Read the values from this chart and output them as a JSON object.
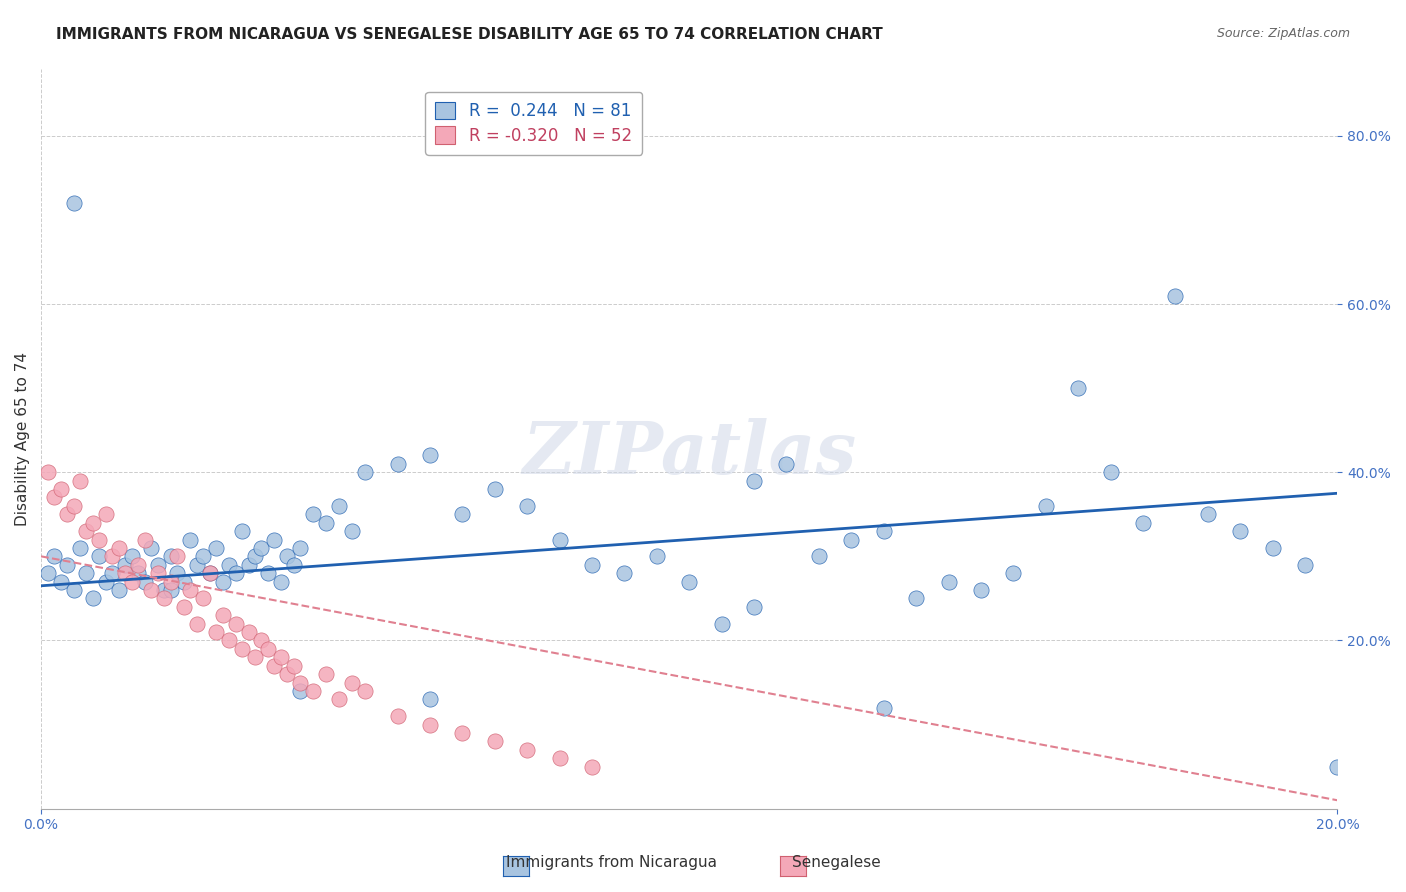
{
  "title": "IMMIGRANTS FROM NICARAGUA VS SENEGALESE DISABILITY AGE 65 TO 74 CORRELATION CHART",
  "source": "Source: ZipAtlas.com",
  "ylabel_label": "Disability Age 65 to 74",
  "xlim": [
    0.0,
    0.2
  ],
  "ylim": [
    0.0,
    0.88
  ],
  "watermark": "ZIPatlas",
  "legend_entry_1": "R =  0.244   N = 81",
  "legend_entry_2": "R = -0.320   N = 52",
  "nicaragua_scatter_x": [
    0.001,
    0.002,
    0.003,
    0.004,
    0.005,
    0.006,
    0.007,
    0.008,
    0.009,
    0.01,
    0.011,
    0.012,
    0.013,
    0.014,
    0.015,
    0.016,
    0.017,
    0.018,
    0.019,
    0.02,
    0.021,
    0.022,
    0.023,
    0.024,
    0.025,
    0.026,
    0.027,
    0.028,
    0.029,
    0.03,
    0.031,
    0.032,
    0.033,
    0.034,
    0.035,
    0.036,
    0.037,
    0.038,
    0.039,
    0.04,
    0.042,
    0.044,
    0.046,
    0.048,
    0.05,
    0.055,
    0.06,
    0.065,
    0.07,
    0.075,
    0.08,
    0.085,
    0.09,
    0.095,
    0.1,
    0.105,
    0.11,
    0.115,
    0.12,
    0.125,
    0.13,
    0.135,
    0.14,
    0.145,
    0.15,
    0.155,
    0.16,
    0.165,
    0.17,
    0.175,
    0.18,
    0.185,
    0.19,
    0.195,
    0.2,
    0.11,
    0.13,
    0.06,
    0.04,
    0.02,
    0.005
  ],
  "nicaragua_scatter_y": [
    0.28,
    0.3,
    0.27,
    0.29,
    0.26,
    0.31,
    0.28,
    0.25,
    0.3,
    0.27,
    0.28,
    0.26,
    0.29,
    0.3,
    0.28,
    0.27,
    0.31,
    0.29,
    0.26,
    0.3,
    0.28,
    0.27,
    0.32,
    0.29,
    0.3,
    0.28,
    0.31,
    0.27,
    0.29,
    0.28,
    0.33,
    0.29,
    0.3,
    0.31,
    0.28,
    0.32,
    0.27,
    0.3,
    0.29,
    0.31,
    0.35,
    0.34,
    0.36,
    0.33,
    0.4,
    0.41,
    0.42,
    0.35,
    0.38,
    0.36,
    0.32,
    0.29,
    0.28,
    0.3,
    0.27,
    0.22,
    0.39,
    0.41,
    0.3,
    0.32,
    0.33,
    0.25,
    0.27,
    0.26,
    0.28,
    0.36,
    0.5,
    0.4,
    0.34,
    0.61,
    0.35,
    0.33,
    0.31,
    0.29,
    0.05,
    0.24,
    0.12,
    0.13,
    0.14,
    0.26,
    0.72
  ],
  "senegalese_scatter_x": [
    0.001,
    0.002,
    0.003,
    0.004,
    0.005,
    0.006,
    0.007,
    0.008,
    0.009,
    0.01,
    0.011,
    0.012,
    0.013,
    0.014,
    0.015,
    0.016,
    0.017,
    0.018,
    0.019,
    0.02,
    0.021,
    0.022,
    0.023,
    0.024,
    0.025,
    0.026,
    0.027,
    0.028,
    0.029,
    0.03,
    0.031,
    0.032,
    0.033,
    0.034,
    0.035,
    0.036,
    0.037,
    0.038,
    0.039,
    0.04,
    0.042,
    0.044,
    0.046,
    0.048,
    0.05,
    0.055,
    0.06,
    0.065,
    0.07,
    0.075,
    0.08,
    0.085
  ],
  "senegalese_scatter_y": [
    0.4,
    0.37,
    0.38,
    0.35,
    0.36,
    0.39,
    0.33,
    0.34,
    0.32,
    0.35,
    0.3,
    0.31,
    0.28,
    0.27,
    0.29,
    0.32,
    0.26,
    0.28,
    0.25,
    0.27,
    0.3,
    0.24,
    0.26,
    0.22,
    0.25,
    0.28,
    0.21,
    0.23,
    0.2,
    0.22,
    0.19,
    0.21,
    0.18,
    0.2,
    0.19,
    0.17,
    0.18,
    0.16,
    0.17,
    0.15,
    0.14,
    0.16,
    0.13,
    0.15,
    0.14,
    0.11,
    0.1,
    0.09,
    0.08,
    0.07,
    0.06,
    0.05
  ],
  "nicaragua_line_x": [
    0.0,
    0.2
  ],
  "nicaragua_line_y": [
    0.265,
    0.375
  ],
  "senegalese_line_x": [
    0.0,
    0.2
  ],
  "senegalese_line_y": [
    0.3,
    0.01
  ],
  "scatter_color_nicaragua": "#a8c4e0",
  "scatter_color_senegalese": "#f4a8b8",
  "line_color_nicaragua": "#2060b0",
  "line_color_senegalese": "#e08090",
  "senegalese_edge_color": "#d06070",
  "background_color": "#ffffff",
  "grid_color": "#cccccc",
  "title_color": "#222222",
  "tick_color": "#4472c4",
  "legend_text_color_1": "#2060b0",
  "legend_text_color_2": "#c04060"
}
